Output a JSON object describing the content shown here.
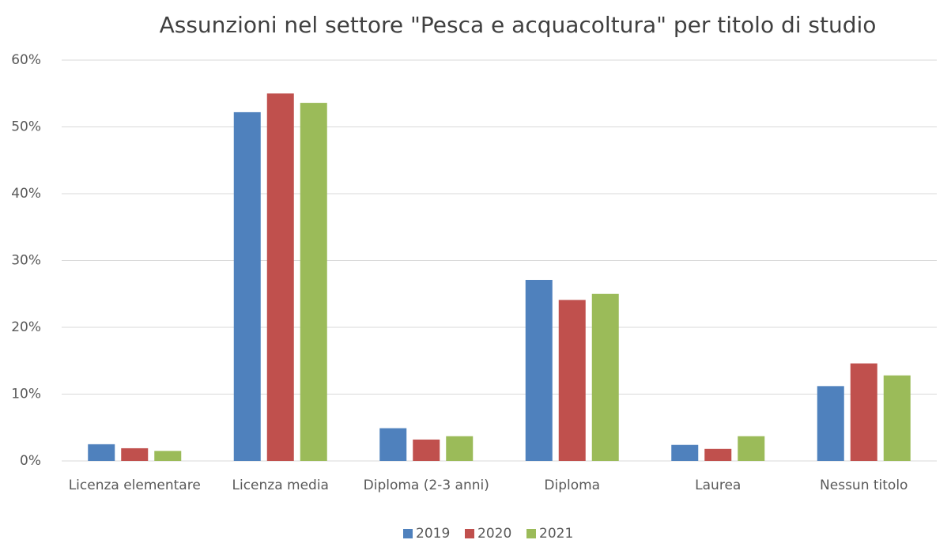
{
  "chart_data": {
    "type": "bar",
    "title": "Assunzioni nel settore \"Pesca e acquacoltura\" per titolo di studio",
    "categories": [
      "Licenza elementare",
      "Licenza media",
      "Diploma (2-3 anni)",
      "Diploma",
      "Laurea",
      "Nessun titolo"
    ],
    "series": [
      {
        "name": "2019",
        "color": "#4f81bd",
        "values": [
          2.5,
          52.2,
          4.9,
          27.1,
          2.4,
          11.2
        ]
      },
      {
        "name": "2020",
        "color": "#c0504d",
        "values": [
          1.9,
          55.0,
          3.2,
          24.1,
          1.8,
          14.6
        ]
      },
      {
        "name": "2021",
        "color": "#9bbb59",
        "values": [
          1.5,
          53.6,
          3.7,
          25.0,
          3.7,
          12.8
        ]
      }
    ],
    "ylim": [
      0,
      60
    ],
    "yticks": [
      {
        "value": 0,
        "label": "0%"
      },
      {
        "value": 10,
        "label": "10%"
      },
      {
        "value": 20,
        "label": "20%"
      },
      {
        "value": 30,
        "label": "30%"
      },
      {
        "value": 40,
        "label": "40%"
      },
      {
        "value": 50,
        "label": "50%"
      },
      {
        "value": 60,
        "label": "60%"
      }
    ],
    "grid": true,
    "legend": "bottom"
  }
}
